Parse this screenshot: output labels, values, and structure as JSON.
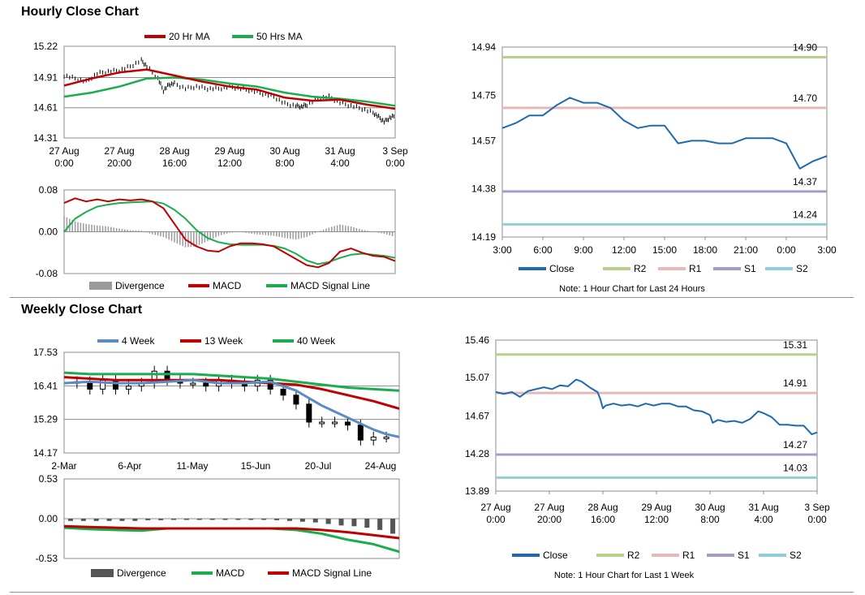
{
  "sections": {
    "hourly_title": "Hourly Close Chart",
    "weekly_title": "Weekly Close Chart"
  },
  "colors": {
    "close": "#1f6aad",
    "r2": "#b8d18a",
    "r1": "#e6b9b8",
    "s1": "#a99bc4",
    "s2": "#92cddc",
    "ma20": "#c00000",
    "ma50": "#1aad4d",
    "wk4": "#5b8ac6",
    "wk13": "#c00000",
    "wk40": "#1aad4d",
    "macd_red": "#c00000",
    "macd_green": "#1aad4d",
    "bar_light": "#9a9a9a",
    "bar_dark": "#555555"
  },
  "chart_data": [
    {
      "id": "hourly_price",
      "type": "line",
      "title": "",
      "ylim": [
        14.31,
        15.22
      ],
      "yticks": [
        "15.22",
        "14.91",
        "14.61",
        "14.31"
      ],
      "ytick_values": [
        15.22,
        14.91,
        14.61,
        14.31
      ],
      "xlabels": [
        [
          "27 Aug",
          "0:00"
        ],
        [
          "27 Aug",
          "20:00"
        ],
        [
          "28 Aug",
          "16:00"
        ],
        [
          "29 Aug",
          "12:00"
        ],
        [
          "30 Aug",
          "8:00"
        ],
        [
          "31 Aug",
          "4:00"
        ],
        [
          "3 Sep",
          "0:00"
        ]
      ],
      "xlim": [
        0,
        120
      ],
      "legend": [
        "20 Hr MA",
        "50 Hrs MA"
      ],
      "series": [
        {
          "name": "Price",
          "x": [
            0,
            4,
            8,
            12,
            16,
            20,
            24,
            28,
            30,
            34,
            36,
            38,
            40,
            44,
            48,
            52,
            56,
            60,
            64,
            68,
            72,
            76,
            80,
            84,
            86,
            88,
            92,
            96,
            100,
            104,
            108,
            112,
            114,
            116,
            118,
            120
          ],
          "values": [
            14.93,
            14.9,
            14.87,
            14.95,
            14.97,
            14.98,
            15.02,
            15.08,
            15.02,
            14.9,
            14.78,
            14.84,
            14.85,
            14.8,
            14.82,
            14.8,
            14.8,
            14.82,
            14.8,
            14.78,
            14.75,
            14.72,
            14.65,
            14.63,
            14.62,
            14.64,
            14.7,
            14.72,
            14.66,
            14.63,
            14.6,
            14.56,
            14.52,
            14.47,
            14.51,
            14.53
          ]
        },
        {
          "name": "20 Hr MA",
          "x": [
            0,
            10,
            20,
            30,
            40,
            50,
            60,
            70,
            80,
            90,
            100,
            110,
            120
          ],
          "values": [
            14.83,
            14.9,
            14.96,
            14.99,
            14.93,
            14.87,
            14.82,
            14.79,
            14.71,
            14.68,
            14.69,
            14.64,
            14.6
          ]
        },
        {
          "name": "50 Hrs MA",
          "x": [
            0,
            10,
            20,
            30,
            40,
            50,
            60,
            70,
            80,
            90,
            100,
            110,
            120
          ],
          "values": [
            14.72,
            14.76,
            14.82,
            14.9,
            14.91,
            14.89,
            14.85,
            14.82,
            14.76,
            14.72,
            14.7,
            14.67,
            14.63
          ]
        }
      ]
    },
    {
      "id": "hourly_macd",
      "type": "line",
      "ylim": [
        -0.08,
        0.08
      ],
      "yticks": [
        "0.08",
        "0.00",
        "-0.08"
      ],
      "ytick_values": [
        0.08,
        0,
        -0.08
      ],
      "xlim": [
        0,
        120
      ],
      "legend": [
        "Divergence",
        "MACD",
        "MACD Signal Line"
      ],
      "divergence": {
        "x": [
          0,
          4,
          8,
          12,
          16,
          20,
          24,
          28,
          32,
          36,
          40,
          44,
          48,
          52,
          56,
          60,
          64,
          68,
          72,
          76,
          80,
          84,
          88,
          92,
          96,
          100,
          104,
          108,
          112,
          116,
          120
        ],
        "values": [
          0.03,
          0.02,
          0.015,
          0.012,
          0.01,
          0.006,
          0.003,
          0.002,
          -0.005,
          -0.01,
          -0.02,
          -0.03,
          -0.028,
          -0.018,
          -0.008,
          -0.002,
          0.0,
          -0.004,
          -0.006,
          -0.008,
          -0.012,
          -0.015,
          -0.01,
          0.0,
          0.008,
          0.014,
          0.01,
          0.004,
          0.0,
          -0.004,
          -0.01
        ]
      },
      "series": [
        {
          "name": "MACD",
          "x": [
            0,
            4,
            8,
            12,
            16,
            20,
            24,
            28,
            32,
            36,
            40,
            44,
            48,
            52,
            56,
            60,
            64,
            68,
            72,
            76,
            80,
            84,
            88,
            92,
            96,
            100,
            104,
            108,
            112,
            116,
            120
          ],
          "values": [
            0.055,
            0.064,
            0.058,
            0.062,
            0.058,
            0.062,
            0.06,
            0.062,
            0.058,
            0.045,
            0.015,
            -0.015,
            -0.028,
            -0.036,
            -0.038,
            -0.028,
            -0.022,
            -0.022,
            -0.024,
            -0.028,
            -0.04,
            -0.052,
            -0.064,
            -0.068,
            -0.06,
            -0.038,
            -0.032,
            -0.04,
            -0.046,
            -0.048,
            -0.056
          ]
        },
        {
          "name": "MACD Signal Line",
          "x": [
            0,
            4,
            8,
            12,
            16,
            20,
            24,
            28,
            32,
            36,
            40,
            44,
            48,
            52,
            56,
            60,
            64,
            68,
            72,
            76,
            80,
            84,
            88,
            92,
            96,
            100,
            104,
            108,
            112,
            116,
            120
          ],
          "values": [
            0.0,
            0.025,
            0.038,
            0.048,
            0.052,
            0.055,
            0.056,
            0.057,
            0.058,
            0.054,
            0.042,
            0.025,
            0.003,
            -0.012,
            -0.02,
            -0.024,
            -0.025,
            -0.025,
            -0.025,
            -0.027,
            -0.032,
            -0.042,
            -0.055,
            -0.062,
            -0.058,
            -0.05,
            -0.044,
            -0.042,
            -0.044,
            -0.046,
            -0.05
          ]
        }
      ]
    },
    {
      "id": "hourly_24h",
      "type": "line",
      "ylim": [
        14.19,
        14.94
      ],
      "yticks": [
        "14.94",
        "14.75",
        "14.57",
        "14.38",
        "14.19"
      ],
      "ytick_values": [
        14.94,
        14.75,
        14.57,
        14.38,
        14.19
      ],
      "xlabels": [
        "3:00",
        "6:00",
        "9:00",
        "12:00",
        "15:00",
        "18:00",
        "21:00",
        "0:00",
        "3:00"
      ],
      "xlim": [
        0,
        24
      ],
      "levels": [
        {
          "name": "R2",
          "value": 14.9,
          "label": "14.90"
        },
        {
          "name": "R1",
          "value": 14.7,
          "label": "14.70"
        },
        {
          "name": "S1",
          "value": 14.37,
          "label": "14.37"
        },
        {
          "name": "S2",
          "value": 14.24,
          "label": "14.24"
        }
      ],
      "legend": [
        "Close",
        "R2",
        "R1",
        "S1",
        "S2"
      ],
      "note": "Note: 1 Hour Chart for Last 24 Hours",
      "series": [
        {
          "name": "Close",
          "x": [
            0,
            1,
            2,
            3,
            4,
            5,
            6,
            7,
            8,
            9,
            10,
            11,
            12,
            13,
            14,
            15,
            16,
            17,
            18,
            19,
            20,
            21,
            22,
            23,
            24
          ],
          "values": [
            14.62,
            14.64,
            14.67,
            14.67,
            14.71,
            14.74,
            14.72,
            14.72,
            14.7,
            14.65,
            14.62,
            14.63,
            14.63,
            14.56,
            14.57,
            14.57,
            14.56,
            14.56,
            14.58,
            14.58,
            14.58,
            14.56,
            14.46,
            14.49,
            14.51
          ]
        }
      ]
    },
    {
      "id": "weekly_price",
      "type": "line",
      "ylim": [
        14.17,
        17.53
      ],
      "yticks": [
        "17.53",
        "16.41",
        "15.29",
        "14.17"
      ],
      "ytick_values": [
        17.53,
        16.41,
        15.29,
        14.17
      ],
      "xlabels": [
        "2-Mar",
        "6-Apr",
        "11-May",
        "15-Jun",
        "20-Jul",
        "24-Aug"
      ],
      "xlim": [
        0,
        26
      ],
      "legend": [
        "4 Week",
        "13 Week",
        "40 Week"
      ],
      "candles": {
        "x": [
          1,
          2,
          3,
          4,
          5,
          6,
          7,
          8,
          9,
          10,
          11,
          12,
          13,
          14,
          15,
          16,
          17,
          18,
          19,
          20,
          21,
          22,
          23,
          24,
          25
        ],
        "open": [
          16.5,
          16.55,
          16.3,
          16.6,
          16.3,
          16.4,
          16.5,
          16.9,
          16.6,
          16.5,
          16.5,
          16.4,
          16.6,
          16.5,
          16.4,
          16.6,
          16.3,
          16.1,
          15.8,
          15.2,
          15.2,
          15.2,
          15.1,
          14.6,
          14.7
        ],
        "close": [
          16.55,
          16.3,
          16.6,
          16.3,
          16.4,
          16.5,
          16.9,
          16.6,
          16.5,
          16.5,
          16.4,
          16.6,
          16.5,
          16.4,
          16.6,
          16.3,
          16.1,
          15.8,
          15.2,
          15.2,
          15.2,
          15.1,
          14.6,
          14.7,
          14.7
        ]
      },
      "series": [
        {
          "name": "4 Week",
          "x": [
            0,
            2,
            4,
            6,
            8,
            10,
            12,
            14,
            16,
            17,
            18,
            19,
            20,
            21,
            22,
            23,
            24,
            25,
            26
          ],
          "values": [
            16.5,
            16.55,
            16.5,
            16.5,
            16.55,
            16.6,
            16.5,
            16.5,
            16.55,
            16.4,
            16.25,
            16.0,
            15.75,
            15.55,
            15.35,
            15.15,
            14.95,
            14.8,
            14.7
          ]
        },
        {
          "name": "13 Week",
          "x": [
            0,
            2,
            4,
            6,
            8,
            10,
            12,
            14,
            16,
            18,
            20,
            22,
            24,
            26
          ],
          "values": [
            16.7,
            16.65,
            16.6,
            16.6,
            16.6,
            16.6,
            16.6,
            16.55,
            16.5,
            16.45,
            16.3,
            16.1,
            15.9,
            15.65
          ]
        },
        {
          "name": "40 Week",
          "x": [
            0,
            2,
            4,
            6,
            8,
            10,
            12,
            14,
            16,
            18,
            20,
            22,
            24,
            26
          ],
          "values": [
            16.85,
            16.8,
            16.8,
            16.8,
            16.8,
            16.8,
            16.75,
            16.7,
            16.65,
            16.55,
            16.45,
            16.35,
            16.3,
            16.25
          ]
        }
      ]
    },
    {
      "id": "weekly_macd",
      "type": "line",
      "ylim": [
        -0.53,
        0.53
      ],
      "yticks": [
        "0.53",
        "0.00",
        "-0.53"
      ],
      "ytick_values": [
        0.53,
        0,
        -0.53
      ],
      "xlim": [
        0,
        26
      ],
      "legend": [
        "Divergence",
        "MACD",
        "MACD Signal Line"
      ],
      "divergence": {
        "x": [
          0,
          1,
          2,
          3,
          4,
          5,
          6,
          7,
          8,
          9,
          10,
          11,
          12,
          13,
          14,
          15,
          16,
          17,
          18,
          19,
          20,
          21,
          22,
          23,
          24,
          25
        ],
        "values": [
          -0.03,
          -0.03,
          -0.03,
          -0.03,
          -0.03,
          -0.03,
          -0.02,
          -0.02,
          -0.01,
          -0.01,
          -0.01,
          -0.01,
          -0.01,
          -0.01,
          -0.01,
          -0.01,
          -0.02,
          -0.03,
          -0.04,
          -0.05,
          -0.07,
          -0.09,
          -0.1,
          -0.12,
          -0.15,
          -0.2
        ]
      },
      "series": [
        {
          "name": "MACD",
          "x": [
            0,
            2,
            4,
            6,
            8,
            10,
            12,
            14,
            16,
            18,
            20,
            22,
            24,
            26
          ],
          "values": [
            -0.12,
            -0.14,
            -0.15,
            -0.16,
            -0.13,
            -0.13,
            -0.13,
            -0.13,
            -0.13,
            -0.15,
            -0.2,
            -0.28,
            -0.34,
            -0.44
          ]
        },
        {
          "name": "MACD Signal Line",
          "x": [
            0,
            2,
            4,
            6,
            8,
            10,
            12,
            14,
            16,
            18,
            20,
            22,
            24,
            26
          ],
          "values": [
            -0.1,
            -0.11,
            -0.12,
            -0.13,
            -0.13,
            -0.13,
            -0.13,
            -0.13,
            -0.13,
            -0.13,
            -0.15,
            -0.18,
            -0.22,
            -0.26
          ]
        }
      ]
    },
    {
      "id": "weekly_1w",
      "type": "line",
      "ylim": [
        13.89,
        15.46
      ],
      "yticks": [
        "15.46",
        "15.07",
        "14.67",
        "14.28",
        "13.89"
      ],
      "ytick_values": [
        15.46,
        15.07,
        14.67,
        14.28,
        13.89
      ],
      "xlabels": [
        [
          "27 Aug",
          "0:00"
        ],
        [
          "27 Aug",
          "20:00"
        ],
        [
          "28 Aug",
          "16:00"
        ],
        [
          "29 Aug",
          "12:00"
        ],
        [
          "30 Aug",
          "8:00"
        ],
        [
          "31 Aug",
          "4:00"
        ],
        [
          "3 Sep",
          "0:00"
        ]
      ],
      "xlim": [
        0,
        120
      ],
      "levels": [
        {
          "name": "R2",
          "value": 15.31,
          "label": "15.31"
        },
        {
          "name": "R1",
          "value": 14.91,
          "label": "14.91"
        },
        {
          "name": "S1",
          "value": 14.27,
          "label": "14.27"
        },
        {
          "name": "S2",
          "value": 14.03,
          "label": "14.03"
        }
      ],
      "legend": [
        "Close",
        "R2",
        "R1",
        "S1",
        "S2"
      ],
      "note": "Note: 1 Hour Chart for Last 1 Week",
      "series": [
        {
          "name": "Close",
          "x": [
            0,
            3,
            6,
            9,
            12,
            15,
            18,
            21,
            24,
            27,
            30,
            32,
            35,
            38,
            39,
            40,
            41,
            44,
            47,
            50,
            53,
            56,
            59,
            62,
            65,
            68,
            71,
            74,
            77,
            80,
            81,
            83,
            86,
            89,
            92,
            95,
            98,
            100,
            103,
            106,
            109,
            112,
            115,
            118,
            120
          ],
          "values": [
            14.92,
            14.9,
            14.92,
            14.87,
            14.93,
            14.95,
            14.97,
            14.95,
            14.99,
            14.98,
            15.05,
            15.03,
            14.97,
            14.92,
            14.85,
            14.75,
            14.78,
            14.8,
            14.78,
            14.79,
            14.77,
            14.8,
            14.78,
            14.8,
            14.8,
            14.77,
            14.77,
            14.73,
            14.72,
            14.68,
            14.6,
            14.63,
            14.61,
            14.62,
            14.6,
            14.64,
            14.72,
            14.7,
            14.66,
            14.58,
            14.58,
            14.57,
            14.57,
            14.48,
            14.5
          ]
        }
      ]
    }
  ]
}
